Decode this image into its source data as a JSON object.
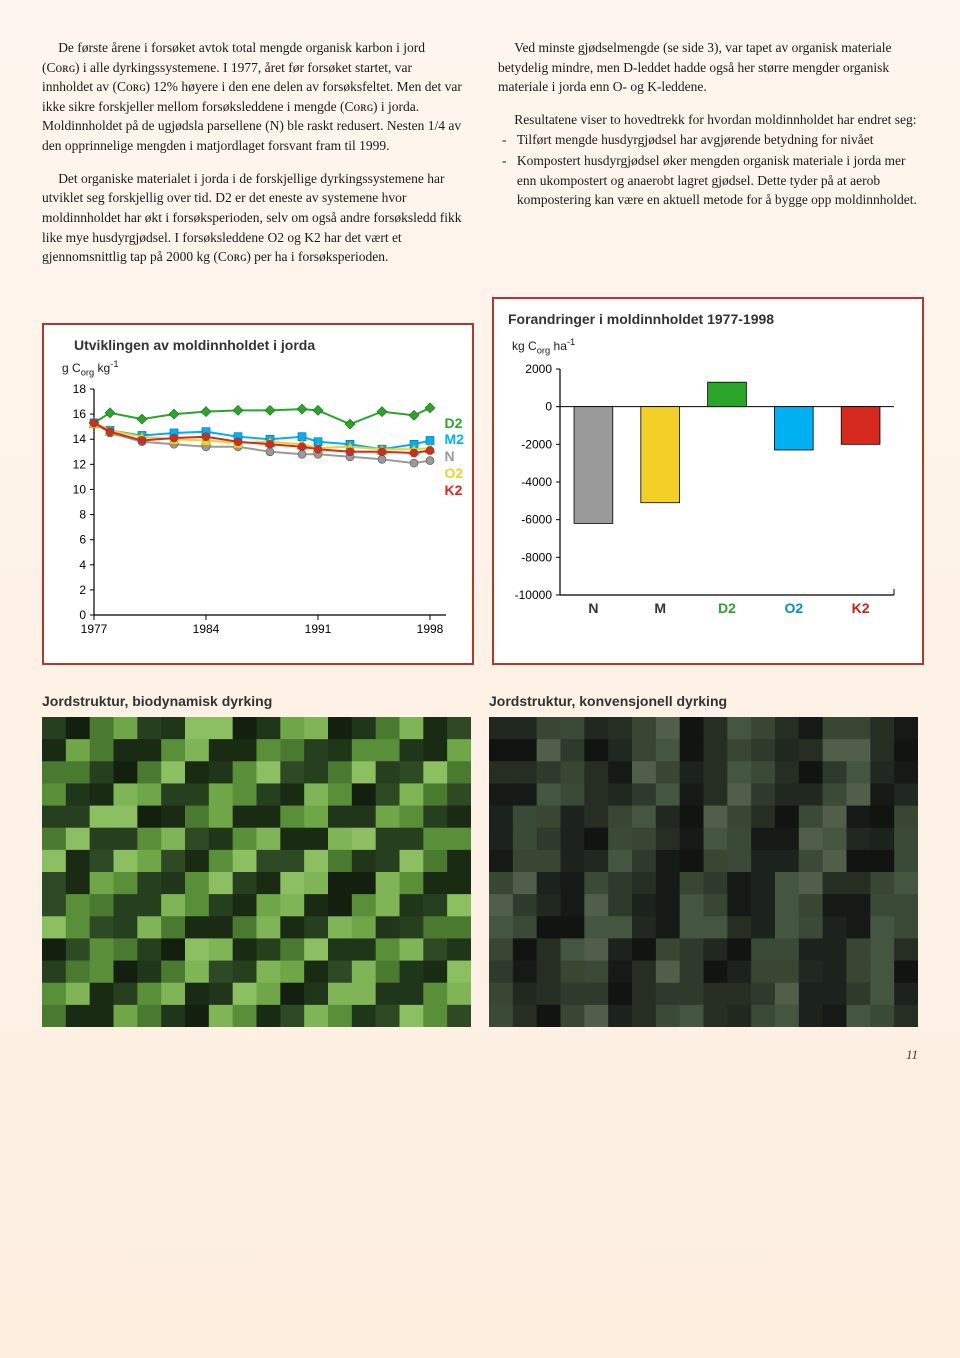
{
  "text": {
    "left_p1": "De første årene i forsøket avtok total mengde organisk karbon i jord (Cᴏʀɢ) i alle dyrkingssystemene. I 1977, året før forsøket startet, var innholdet av (Cᴏʀɢ) 12% høyere i den ene delen av forsøksfeltet. Men det var ikke sikre forskjeller mellom forsøksleddene i mengde (Cᴏʀɢ) i jorda. Moldinnholdet på de ugjødsla parsellene (N) ble raskt redusert. Nesten 1/4 av den opprinnelige mengden i matjordlaget forsvant fram til 1999.",
    "left_p2": "Det organiske materialet i jorda i de forskjellige dyrkingssystemene har utviklet seg forskjellig over tid. D2 er det eneste av systemene hvor moldinnholdet har økt i forsøksperioden, selv om også andre forsøksledd fikk like mye husdyrgjødsel. I forsøksleddene O2 og K2 har det vært et gjennomsnittlig tap på 2000 kg (Cᴏʀɢ) per ha i forsøksperioden.",
    "right_p1": "Ved minste gjødselmengde (se side 3), var tapet av organisk materiale betydelig mindre, men D-leddet hadde også her større mengder organisk materiale i jorda enn O- og K-leddene.",
    "right_p2": "Resultatene viser to hovedtrekk for hvordan moldinn­holdet har endret seg:",
    "right_li1": "Tilført mengde husdyrgjødsel har avgjørende betydning for nivået",
    "right_li2": "Kompostert husdyrgjødsel øker mengden organisk materiale i jorda mer enn ukompostert og anaerobt lagret gjødsel. Dette tyder på at aerob kompostering kan være en aktuell metode for å bygge opp moldinnholdet."
  },
  "line_chart": {
    "title": "Utviklingen av moldinnholdet i jorda",
    "ylabel_a": "g C",
    "ylabel_sub": "org",
    "ylabel_b": " kg",
    "ylabel_sup": "-1",
    "x_ticks": [
      1977,
      1984,
      1991,
      1998
    ],
    "y_ticks": [
      0,
      2,
      4,
      6,
      8,
      10,
      12,
      14,
      16,
      18
    ],
    "ylim": [
      0,
      18
    ],
    "xlim": [
      1977,
      1999
    ],
    "series": {
      "D2": {
        "color": "#2aa52a",
        "marker": "diamond",
        "values": [
          [
            1977,
            15.3
          ],
          [
            1978,
            16.1
          ],
          [
            1980,
            15.6
          ],
          [
            1982,
            16.0
          ],
          [
            1984,
            16.2
          ],
          [
            1986,
            16.3
          ],
          [
            1988,
            16.3
          ],
          [
            1990,
            16.4
          ],
          [
            1991,
            16.3
          ],
          [
            1993,
            15.2
          ],
          [
            1995,
            16.2
          ],
          [
            1997,
            15.9
          ],
          [
            1998,
            16.5
          ]
        ]
      },
      "M2": {
        "color": "#00b0f0",
        "marker": "square",
        "values": [
          [
            1977,
            15.3
          ],
          [
            1978,
            14.7
          ],
          [
            1980,
            14.3
          ],
          [
            1982,
            14.5
          ],
          [
            1984,
            14.6
          ],
          [
            1986,
            14.2
          ],
          [
            1988,
            14.0
          ],
          [
            1990,
            14.2
          ],
          [
            1991,
            13.8
          ],
          [
            1993,
            13.6
          ],
          [
            1995,
            13.2
          ],
          [
            1997,
            13.6
          ],
          [
            1998,
            13.9
          ]
        ]
      },
      "N": {
        "color": "#9a9a9a",
        "marker": "circle",
        "values": [
          [
            1977,
            15.3
          ],
          [
            1978,
            14.5
          ],
          [
            1980,
            13.8
          ],
          [
            1982,
            13.6
          ],
          [
            1984,
            13.4
          ],
          [
            1986,
            13.4
          ],
          [
            1988,
            13.0
          ],
          [
            1990,
            12.8
          ],
          [
            1991,
            12.8
          ],
          [
            1993,
            12.6
          ],
          [
            1995,
            12.4
          ],
          [
            1997,
            12.1
          ],
          [
            1998,
            12.3
          ]
        ]
      },
      "O2": {
        "color": "#f2d027",
        "marker": "triangle",
        "values": [
          [
            1977,
            15.3
          ],
          [
            1978,
            14.7
          ],
          [
            1980,
            14.2
          ],
          [
            1982,
            14.0
          ],
          [
            1984,
            13.9
          ],
          [
            1986,
            13.7
          ],
          [
            1988,
            13.8
          ],
          [
            1990,
            13.6
          ],
          [
            1991,
            13.3
          ],
          [
            1993,
            13.4
          ],
          [
            1995,
            13.2
          ],
          [
            1997,
            13.2
          ],
          [
            1998,
            13.3
          ]
        ]
      },
      "K2": {
        "color": "#d62a1e",
        "marker": "circle",
        "values": [
          [
            1977,
            15.3
          ],
          [
            1978,
            14.6
          ],
          [
            1980,
            13.9
          ],
          [
            1982,
            14.1
          ],
          [
            1984,
            14.2
          ],
          [
            1986,
            13.8
          ],
          [
            1988,
            13.6
          ],
          [
            1990,
            13.4
          ],
          [
            1991,
            13.2
          ],
          [
            1993,
            13.0
          ],
          [
            1995,
            13.0
          ],
          [
            1997,
            12.9
          ],
          [
            1998,
            13.1
          ]
        ]
      }
    },
    "legend_order": [
      "D2",
      "M2",
      "N",
      "O2",
      "K2"
    ]
  },
  "bar_chart": {
    "title": "Forandringer i moldinnholdet 1977-1998",
    "ylabel_a": "kg C",
    "ylabel_sub": "org",
    "ylabel_b": " ha",
    "ylabel_sup": "-1",
    "ylim": [
      -10000,
      2000
    ],
    "ytick_step": 2000,
    "y_ticks": [
      2000,
      0,
      -2000,
      -4000,
      -6000,
      -8000,
      -10000
    ],
    "categories": [
      "N",
      "M",
      "D2",
      "O2",
      "K2"
    ],
    "values": [
      -6200,
      -5100,
      1300,
      -2300,
      -2000
    ],
    "colors": [
      "#9a9a9a",
      "#f2d027",
      "#2aa52a",
      "#00b0f0",
      "#d62a1e"
    ],
    "label_colors": [
      "#333333",
      "#333333",
      "#2aa52a",
      "#0090c8",
      "#c82018"
    ]
  },
  "photos": {
    "left_caption": "Jordstruktur, biodynamisk dyrking",
    "right_caption": "Jordstruktur, konvensjonell dyrking"
  },
  "page_number": "11"
}
